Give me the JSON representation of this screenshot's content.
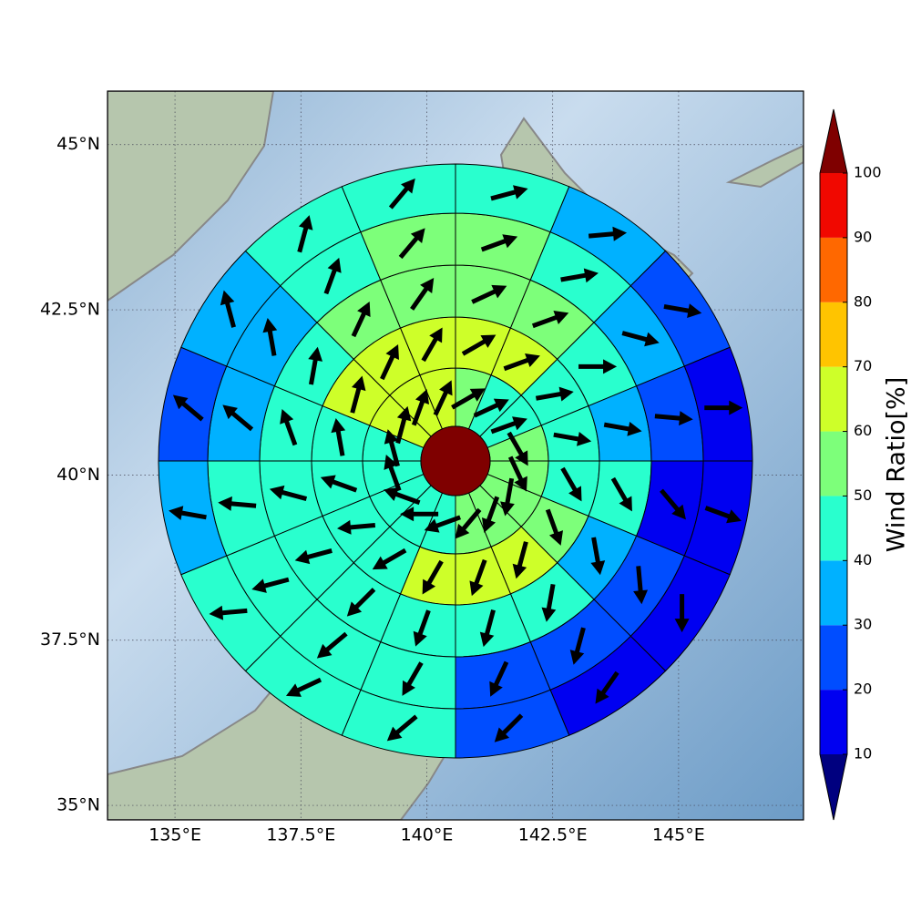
{
  "chart_data": {
    "type": "polar_grid",
    "colorbar_label": "Wind Ratio[%]",
    "xlim": [
      133.66,
      147.48
    ],
    "ylim": [
      34.78,
      45.81
    ],
    "xticks": [
      {
        "value": 135,
        "label": "135°E"
      },
      {
        "value": 137.5,
        "label": "137.5°E"
      },
      {
        "value": 140,
        "label": "140°E"
      },
      {
        "value": 142.5,
        "label": "142.5°E"
      },
      {
        "value": 145,
        "label": "145°E"
      }
    ],
    "yticks": [
      {
        "value": 35,
        "label": "35°N"
      },
      {
        "value": 37.5,
        "label": "37.5°N"
      },
      {
        "value": 40,
        "label": "40°N"
      },
      {
        "value": 42.5,
        "label": "42.5°N"
      },
      {
        "value": 45,
        "label": "45°N"
      }
    ],
    "grid": true,
    "levels": [
      10,
      20,
      30,
      40,
      50,
      60,
      70,
      80,
      90,
      100
    ],
    "level_colors": [
      "#0000f1",
      "#004dff",
      "#00b1ff",
      "#29ffce",
      "#7dff7a",
      "#ceff29",
      "#ffc400",
      "#ff6800",
      "#f10800"
    ],
    "under_color": "#00007f",
    "over_color": "#7f0000",
    "center_color": "#7f0000",
    "sectors": 16,
    "rings": [
      {
        "values": [
          55,
          45,
          45,
          55,
          55,
          55,
          55,
          55,
          45,
          45,
          45,
          45,
          45,
          65,
          65,
          65
        ],
        "directions": [
          60,
          65,
          70,
          150,
          155,
          190,
          200,
          220,
          250,
          270,
          290,
          340,
          345,
          15,
          20,
          25
        ]
      },
      {
        "values": [
          65,
          65,
          45,
          45,
          45,
          55,
          65,
          65,
          65,
          45,
          45,
          45,
          45,
          65,
          65,
          65
        ],
        "directions": [
          60,
          70,
          80,
          100,
          150,
          160,
          195,
          200,
          210,
          240,
          265,
          290,
          350,
          15,
          25,
          30
        ]
      },
      {
        "values": [
          55,
          55,
          45,
          35,
          45,
          35,
          45,
          45,
          45,
          45,
          45,
          45,
          45,
          45,
          55,
          55
        ],
        "directions": [
          65,
          70,
          90,
          100,
          150,
          170,
          190,
          195,
          200,
          225,
          255,
          285,
          340,
          10,
          25,
          35
        ]
      },
      {
        "values": [
          55,
          45,
          35,
          25,
          15,
          25,
          25,
          25,
          45,
          45,
          45,
          45,
          35,
          35,
          45,
          55
        ],
        "directions": [
          70,
          80,
          105,
          95,
          140,
          175,
          195,
          205,
          210,
          230,
          255,
          275,
          310,
          350,
          20,
          40
        ]
      },
      {
        "values": [
          45,
          35,
          25,
          15,
          15,
          15,
          15,
          25,
          45,
          45,
          45,
          35,
          25,
          35,
          45,
          45
        ],
        "directions": [
          75,
          85,
          100,
          90,
          110,
          180,
          215,
          225,
          230,
          245,
          265,
          280,
          310,
          345,
          15,
          40
        ]
      }
    ]
  }
}
